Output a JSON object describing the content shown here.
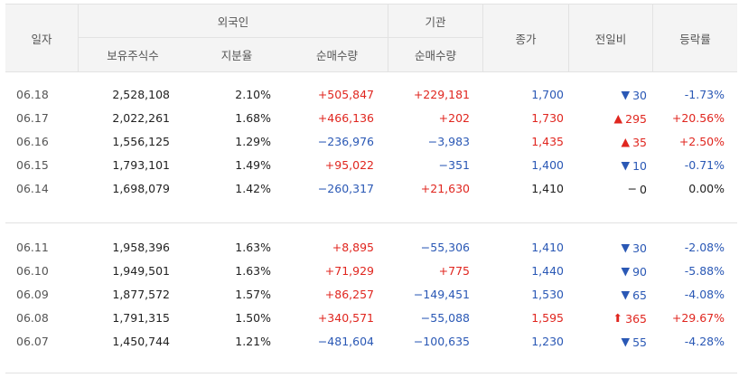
{
  "header": {
    "date": "일자",
    "foreign": "외국인",
    "institution": "기관",
    "close": "종가",
    "change": "전일비",
    "rate": "등락률",
    "holdings": "보유주식수",
    "ratio": "지분율",
    "foreign_net": "순매수량",
    "inst_net": "순매수량"
  },
  "group1": [
    {
      "date": "06.18",
      "holdings": "2,528,108",
      "ratio": "2.10%",
      "foreign_net": "+505,847",
      "fdir": "red",
      "inst_net": "+229,181",
      "idir": "red",
      "close": "1,700",
      "cdir": "blue",
      "arrow": "▼",
      "change": "30",
      "rate": "-1.73%"
    },
    {
      "date": "06.17",
      "holdings": "2,022,261",
      "ratio": "1.68%",
      "foreign_net": "+466,136",
      "fdir": "red",
      "inst_net": "+202",
      "idir": "red",
      "close": "1,730",
      "cdir": "red",
      "arrow": "▲",
      "change": "295",
      "rate": "+20.56%"
    },
    {
      "date": "06.16",
      "holdings": "1,556,125",
      "ratio": "1.29%",
      "foreign_net": "−236,976",
      "fdir": "blue",
      "inst_net": "−3,983",
      "idir": "blue",
      "close": "1,435",
      "cdir": "red",
      "arrow": "▲",
      "change": "35",
      "rate": "+2.50%"
    },
    {
      "date": "06.15",
      "holdings": "1,793,101",
      "ratio": "1.49%",
      "foreign_net": "+95,022",
      "fdir": "red",
      "inst_net": "−351",
      "idir": "blue",
      "close": "1,400",
      "cdir": "blue",
      "arrow": "▼",
      "change": "10",
      "rate": "-0.71%"
    },
    {
      "date": "06.14",
      "holdings": "1,698,079",
      "ratio": "1.42%",
      "foreign_net": "−260,317",
      "fdir": "blue",
      "inst_net": "+21,630",
      "idir": "red",
      "close": "1,410",
      "cdir": "black",
      "arrow": "−",
      "change": "0",
      "rate": "0.00%"
    }
  ],
  "group2": [
    {
      "date": "06.11",
      "holdings": "1,958,396",
      "ratio": "1.63%",
      "foreign_net": "+8,895",
      "fdir": "red",
      "inst_net": "−55,306",
      "idir": "blue",
      "close": "1,410",
      "cdir": "blue",
      "arrow": "▼",
      "change": "30",
      "rate": "-2.08%"
    },
    {
      "date": "06.10",
      "holdings": "1,949,501",
      "ratio": "1.63%",
      "foreign_net": "+71,929",
      "fdir": "red",
      "inst_net": "+775",
      "idir": "red",
      "close": "1,440",
      "cdir": "blue",
      "arrow": "▼",
      "change": "90",
      "rate": "-5.88%"
    },
    {
      "date": "06.09",
      "holdings": "1,877,572",
      "ratio": "1.57%",
      "foreign_net": "+86,257",
      "fdir": "red",
      "inst_net": "−149,451",
      "idir": "blue",
      "close": "1,530",
      "cdir": "blue",
      "arrow": "▼",
      "change": "65",
      "rate": "-4.08%"
    },
    {
      "date": "06.08",
      "holdings": "1,791,315",
      "ratio": "1.50%",
      "foreign_net": "+340,571",
      "fdir": "red",
      "inst_net": "−55,088",
      "idir": "blue",
      "close": "1,595",
      "cdir": "red",
      "arrow": "⬆",
      "change": "365",
      "rate": "+29.67%"
    },
    {
      "date": "06.07",
      "holdings": "1,450,744",
      "ratio": "1.21%",
      "foreign_net": "−481,604",
      "fdir": "blue",
      "inst_net": "−100,635",
      "idir": "blue",
      "close": "1,230",
      "cdir": "blue",
      "arrow": "▼",
      "change": "55",
      "rate": "-4.28%"
    }
  ],
  "colors": {
    "up": "#e0261f",
    "down": "#2a58b5",
    "header_bg": "#f4f4f4",
    "border": "#e2e2e2"
  }
}
